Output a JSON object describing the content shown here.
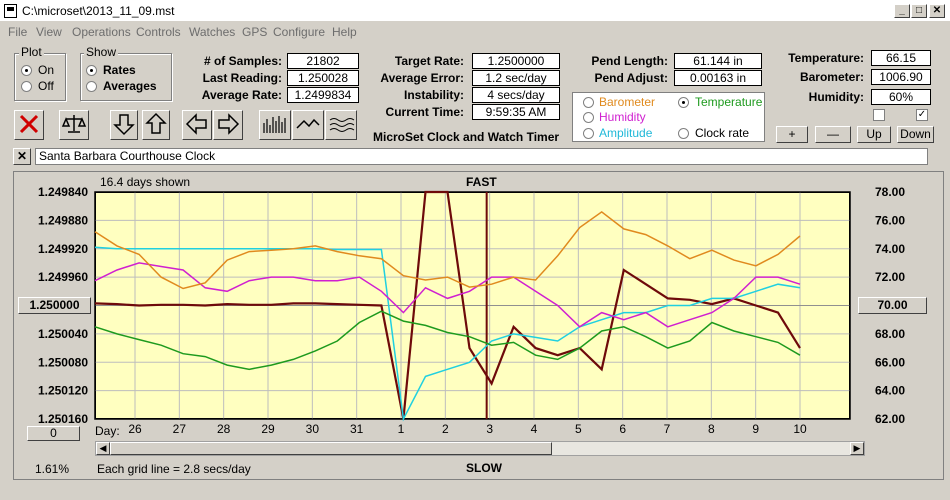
{
  "window": {
    "title": "C:\\microset\\2013_11_09.mst",
    "minimize": "_",
    "maximize": "□",
    "close": "✕"
  },
  "menu": [
    "File",
    "View",
    "Operations",
    "Controls",
    "Watches",
    "GPS",
    "Configure",
    "Help"
  ],
  "plot_group": {
    "label": "Plot",
    "on": "On",
    "off": "Off",
    "selected": "On"
  },
  "show_group": {
    "label": "Show",
    "rates": "Rates",
    "averages": "Averages",
    "selected": "Rates"
  },
  "stats": {
    "samples_label": "# of Samples:",
    "samples": "21802",
    "last_reading_label": "Last Reading:",
    "last_reading": "1.250028",
    "average_rate_label": "Average Rate:",
    "average_rate": "1.2499834",
    "target_rate_label": "Target Rate:",
    "target_rate": "1.2500000",
    "average_error_label": "Average Error:",
    "average_error": "1.2 sec/day",
    "instability_label": "Instability:",
    "instability": "4 secs/day",
    "current_time_label": "Current Time:",
    "current_time": "9:59:35 AM",
    "pend_length_label": "Pend Length:",
    "pend_length": "61.144 in",
    "pend_adjust_label": "Pend Adjust:",
    "pend_adjust": "0.00163 in",
    "temperature_label": "Temperature:",
    "temperature": "66.15",
    "barometer_label": "Barometer:",
    "barometer": "1006.90",
    "humidity_label": "Humidity:",
    "humidity": "60%"
  },
  "app_caption": "MicroSet Clock and Watch Timer",
  "sensor_options": {
    "barometer": "Barometer",
    "temperature": "Temperature",
    "humidity": "Humidity",
    "amplitude": "Amplitude",
    "clock_rate": "Clock rate",
    "selected": "Temperature"
  },
  "sensor_colors": {
    "barometer": "#e08a1e",
    "temperature": "#1e9a1e",
    "humidity": "#d020d0",
    "amplitude": "#20d0e0",
    "clock_rate": "#000000",
    "rate": "#6e0a0a"
  },
  "scale_buttons": {
    "plus": "+",
    "minus": "—",
    "up": "Up",
    "down": "Down"
  },
  "clock_name": "Santa Barbara Courthouse Clock",
  "graph": {
    "days_shown": "16.4 days shown",
    "fast": "FAST",
    "slow": "SLOW",
    "grid_note": "Each grid line = 2.8 secs/day",
    "percent": "1.61%",
    "day_label": "Day:",
    "left_reset": "0",
    "center_rate_button": "1.250000",
    "right_center_button": "70.00"
  },
  "chart_data": {
    "type": "line",
    "title": "",
    "xlabel": "Day",
    "x_ticks": [
      "26",
      "27",
      "28",
      "29",
      "30",
      "31",
      "1",
      "2",
      "3",
      "4",
      "5",
      "6",
      "7",
      "8",
      "9",
      "10"
    ],
    "y_left_ticks": [
      "1.249840",
      "1.249880",
      "1.249920",
      "1.249960",
      "1.250000",
      "1.250040",
      "1.250080",
      "1.250120",
      "1.250160"
    ],
    "y_right_ticks": [
      "78.00",
      "76.00",
      "74.00",
      "72.00",
      "70.00",
      "68.00",
      "66.00",
      "64.00",
      "62.00"
    ],
    "ylim_left": [
      1.24984,
      1.25016
    ],
    "ylim_right": [
      62,
      78
    ],
    "grid": true,
    "series": [
      {
        "color": "#6e0a0a",
        "axis": "left",
        "values": [
          1.249997,
          1.249998,
          1.25,
          1.249999,
          1.249999,
          1.25,
          1.249998,
          1.249999,
          1.249999,
          1.249997,
          1.249997,
          1.249998,
          1.249999,
          1.25,
          1.25016,
          1.24984,
          1.24984,
          1.25006,
          1.25011,
          1.25003,
          1.25006,
          1.25007,
          1.25006,
          1.25009,
          1.24995,
          1.24997,
          1.24999,
          1.249992,
          1.249998,
          1.24999,
          1.25,
          1.25001,
          1.25006
        ]
      },
      {
        "color": "#20d0e0",
        "axis": "left",
        "values": [
          1.249918,
          1.24992,
          1.24992,
          1.24992,
          1.24992,
          1.24992,
          1.24992,
          1.24992,
          1.24992,
          1.24992,
          1.24992,
          1.249921,
          1.249921,
          1.249921,
          1.25016,
          1.2501,
          1.25009,
          1.25008,
          1.25005,
          1.25004,
          1.250045,
          1.25005,
          1.25003,
          1.25002,
          1.25001,
          1.25001,
          1.25,
          1.25,
          1.24999,
          1.24999,
          1.24998,
          1.24997,
          1.249975
        ]
      },
      {
        "color": "#d020d0",
        "axis": "left",
        "values": [
          1.249965,
          1.24995,
          1.24994,
          1.249945,
          1.24995,
          1.249975,
          1.24998,
          1.249965,
          1.24996,
          1.24996,
          1.249965,
          1.249965,
          1.24996,
          1.24998,
          1.25001,
          1.249975,
          1.24999,
          1.24998,
          1.24996,
          1.24996,
          1.24998,
          1.25,
          1.25003,
          1.25001,
          1.25002,
          1.25001,
          1.25003,
          1.25002,
          1.25001,
          1.24999,
          1.24996,
          1.24996,
          1.24997
        ]
      },
      {
        "color": "#e08a1e",
        "axis": "right",
        "values": [
          75.2,
          74.2,
          73.6,
          72.0,
          71.2,
          71.6,
          73.2,
          73.8,
          73.9,
          74.0,
          74.2,
          73.8,
          73.5,
          73.3,
          72.1,
          71.8,
          72.0,
          71.3,
          71.5,
          72.0,
          71.8,
          73.5,
          75.5,
          76.6,
          75.4,
          75.0,
          74.2,
          73.3,
          73.9,
          73.2,
          72.8,
          73.6,
          74.9
        ]
      },
      {
        "color": "#1e9a1e",
        "axis": "right",
        "values": [
          68.5,
          68.0,
          67.6,
          67.2,
          66.6,
          66.4,
          65.8,
          65.5,
          65.8,
          66.2,
          66.8,
          67.5,
          68.8,
          69.6,
          68.9,
          68.6,
          68.1,
          67.8,
          67.2,
          67.4,
          66.5,
          66.2,
          67.0,
          68.2,
          68.5,
          67.8,
          67.0,
          67.5,
          68.8,
          68.2,
          67.8,
          67.4,
          66.5
        ]
      }
    ]
  }
}
